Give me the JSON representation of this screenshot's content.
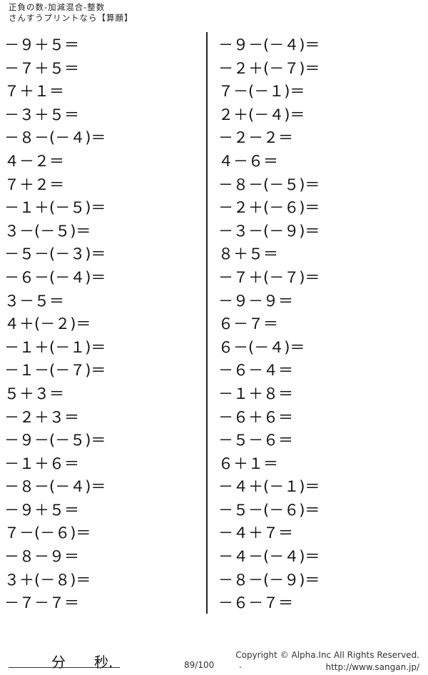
{
  "header": {
    "title": "正負の数-加減混合-整数",
    "subtitle": "さんすうプリントなら【算願】"
  },
  "problems_left": [
    "－９＋５＝",
    "－７＋５＝",
    "７＋１＝",
    "－３＋５＝",
    "－８－(－４)＝",
    "４－２＝",
    "７＋２＝",
    "－１＋(－５)＝",
    "３－(－５)＝",
    "－５－(－３)＝",
    "－６－(－４)＝",
    "３－５＝",
    "４＋(－２)＝",
    "－１＋(－１)＝",
    "－１－(－７)＝",
    "５＋３＝",
    "－２＋３＝",
    "－９－(－５)＝",
    "－１＋６＝",
    "－８－(－４)＝",
    "－９＋５＝",
    "７－(－６)＝",
    "－８－９＝",
    "３＋(－８)＝",
    "－７－７＝"
  ],
  "problems_right": [
    "－９－(－４)＝",
    "－２＋(－７)＝",
    "７－(－１)＝",
    "２＋(－４)＝",
    "－２－２＝",
    "４－６＝",
    "－８－(－５)＝",
    "－２＋(－６)＝",
    "－３－(－９)＝",
    "８＋５＝",
    "－７＋(－７)＝",
    "－９－９＝",
    "６－７＝",
    "６－(－４)＝",
    "－６－４＝",
    "－１＋８＝",
    "－６＋６＝",
    "－５－６＝",
    "６＋１＝",
    "－４＋(－１)＝",
    "－５－(－６)＝",
    "－４＋７＝",
    "－４－(－４)＝",
    "－８－(－９)＝",
    "－６－７＝"
  ],
  "footer": {
    "minutes_label": "分",
    "seconds_label": "秒.",
    "page": "89/100",
    "dot": ".",
    "copyright": "Copyright ©  Alpha.Inc All Rights Reserved.",
    "url": "http://www.sangan.jp/"
  }
}
